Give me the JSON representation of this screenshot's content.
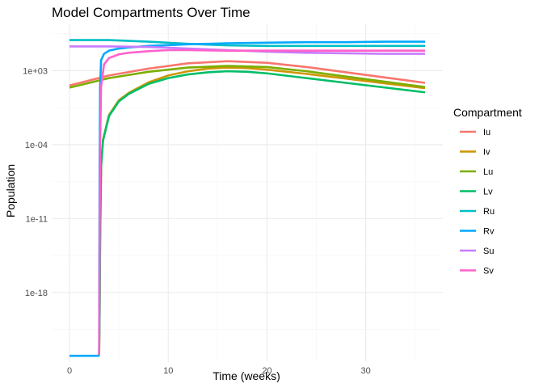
{
  "chart_data": {
    "type": "line",
    "title": "Model Compartments Over Time",
    "xlabel": "Time (weeks)",
    "ylabel": "Population",
    "y_scale": "log10",
    "xlim": [
      -1.8,
      37.8
    ],
    "ylim_log10": [
      -24.6,
      7.4
    ],
    "x_ticks": [
      0,
      10,
      20,
      30
    ],
    "x_tick_labels": [
      "0",
      "10",
      "20",
      "30"
    ],
    "y_ticks_log10": [
      -18,
      -11,
      -4,
      3
    ],
    "y_tick_labels": [
      "1e-18",
      "1e-11",
      "1e-04",
      "1e+03"
    ],
    "grid": true,
    "legend": {
      "title": "Compartment",
      "position": "right"
    },
    "series": [
      {
        "name": "Iu",
        "color": "#F8766D",
        "x": [
          0,
          4,
          8,
          12,
          16,
          20,
          24,
          28,
          32,
          36
        ],
        "log10_y": [
          1.6,
          2.55,
          3.2,
          3.7,
          3.9,
          3.75,
          3.35,
          2.85,
          2.35,
          1.85
        ]
      },
      {
        "name": "Iv",
        "color": "#CD9600",
        "x": [
          3,
          3.05,
          3.1,
          3.2,
          3.4,
          4,
          5,
          6,
          8,
          10,
          12,
          14,
          16,
          18,
          20,
          24,
          28,
          32,
          36
        ],
        "log10_y": [
          -24,
          -20,
          -13,
          -6,
          -3.5,
          -1.2,
          0.2,
          0.9,
          1.9,
          2.55,
          2.95,
          3.2,
          3.3,
          3.25,
          3.1,
          2.7,
          2.25,
          1.8,
          1.35
        ]
      },
      {
        "name": "Lu",
        "color": "#7CAE00",
        "x": [
          0,
          4,
          8,
          12,
          16,
          20,
          24,
          28,
          32,
          36
        ],
        "log10_y": [
          1.4,
          2.3,
          2.9,
          3.3,
          3.45,
          3.35,
          2.95,
          2.45,
          1.95,
          1.45
        ]
      },
      {
        "name": "Lv",
        "color": "#00BE67",
        "x": [
          3,
          3.05,
          3.1,
          3.2,
          3.4,
          4,
          5,
          6,
          8,
          10,
          12,
          14,
          16,
          18,
          20,
          24,
          28,
          32,
          36
        ],
        "log10_y": [
          -24,
          -20,
          -13,
          -6,
          -3.6,
          -1.3,
          0.1,
          0.8,
          1.75,
          2.3,
          2.65,
          2.85,
          2.95,
          2.9,
          2.75,
          2.3,
          1.85,
          1.4,
          0.95
        ]
      },
      {
        "name": "Ru",
        "color": "#00BFC4",
        "x": [
          0,
          4,
          8,
          12,
          16,
          20,
          24,
          28,
          32,
          36
        ],
        "log10_y": [
          5.9,
          5.9,
          5.75,
          5.55,
          5.4,
          5.35,
          5.35,
          5.35,
          5.35,
          5.35
        ]
      },
      {
        "name": "Rv",
        "color": "#00A9FF",
        "x": [
          3,
          3.02,
          3.05,
          3.1,
          3.2,
          3.5,
          4,
          5,
          6,
          8,
          12,
          16,
          20,
          24,
          28,
          32,
          36
        ],
        "log10_y": [
          -24,
          -16,
          -6,
          1.5,
          4.0,
          4.6,
          4.9,
          5.1,
          5.2,
          5.35,
          5.5,
          5.6,
          5.65,
          5.7,
          5.7,
          5.75,
          5.75
        ]
      },
      {
        "name": "Su",
        "color": "#C77CFF",
        "x": [
          0,
          4,
          8,
          12,
          16,
          20,
          24,
          28,
          32,
          36
        ],
        "log10_y": [
          5.3,
          5.3,
          5.25,
          5.1,
          4.95,
          4.8,
          4.7,
          4.65,
          4.6,
          4.6
        ]
      },
      {
        "name": "Sv",
        "color": "#FF61CC",
        "x": [
          3,
          3.05,
          3.1,
          3.2,
          3.5,
          4,
          5,
          6,
          8,
          10,
          12,
          16,
          20,
          24,
          28,
          32,
          36
        ],
        "log10_y": [
          -24,
          -14,
          -4,
          1.5,
          3.6,
          4.2,
          4.55,
          4.7,
          4.85,
          4.95,
          4.95,
          4.9,
          4.9,
          4.9,
          4.9,
          4.9,
          4.9
        ]
      }
    ]
  }
}
